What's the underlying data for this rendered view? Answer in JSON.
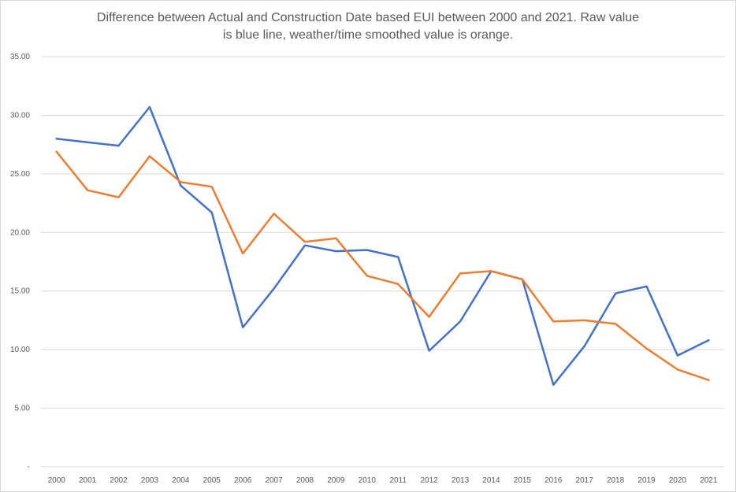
{
  "chart_data": {
    "type": "line",
    "title_lines": [
      "Difference between Actual and Construction Date based EUI between 2000 and 2021.  Raw value",
      "is blue line, weather/time smoothed value is orange."
    ],
    "xlabel": "",
    "ylabel": "",
    "ylim": [
      0,
      35
    ],
    "yticks": [
      0,
      5,
      10,
      15,
      20,
      25,
      30,
      35
    ],
    "ytick_labels": [
      "-",
      "5.00",
      "10.00",
      "15.00",
      "20.00",
      "25.00",
      "30.00",
      "35.00"
    ],
    "categories": [
      "2000",
      "2001",
      "2002",
      "2003",
      "2004",
      "2005",
      "2006",
      "2007",
      "2008",
      "2009",
      "2010",
      "2011",
      "2012",
      "2013",
      "2014",
      "2015",
      "2016",
      "2017",
      "2018",
      "2019",
      "2020",
      "2021"
    ],
    "grid": true,
    "legend": "none",
    "series": [
      {
        "color": "#4472C4",
        "values": [
          28.0,
          27.7,
          27.4,
          30.7,
          24.0,
          21.7,
          11.9,
          15.2,
          18.9,
          18.4,
          18.5,
          17.9,
          9.9,
          12.4,
          16.7,
          16.0,
          7.0,
          10.3,
          14.8,
          15.4,
          9.5,
          10.8
        ]
      },
      {
        "color": "#ED7D31",
        "values": [
          26.9,
          23.6,
          23.0,
          26.5,
          24.3,
          23.9,
          18.2,
          21.6,
          19.2,
          19.5,
          16.3,
          15.6,
          12.8,
          16.5,
          16.7,
          16.0,
          12.4,
          12.5,
          12.2,
          10.1,
          8.3,
          7.4
        ]
      }
    ]
  }
}
